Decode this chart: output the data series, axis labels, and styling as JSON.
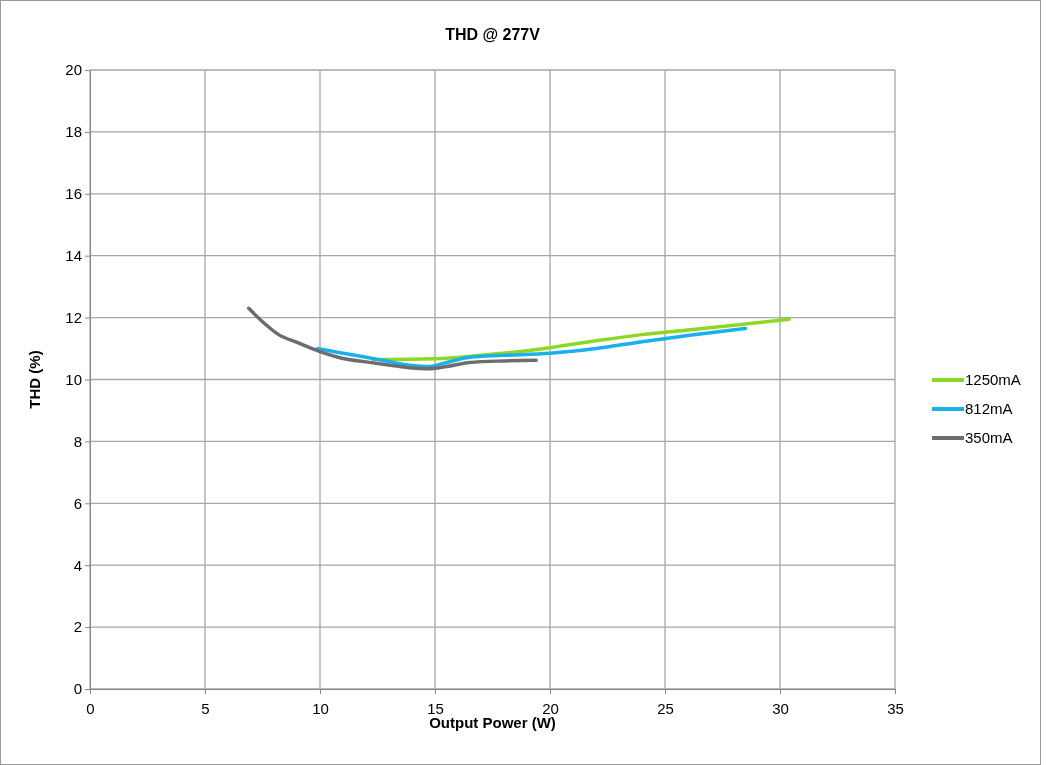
{
  "chart_data": {
    "type": "line",
    "title": "THD @ 277V",
    "xlabel": "Output Power (W)",
    "ylabel": "THD (%)",
    "xlim": [
      0,
      35
    ],
    "xticks": [
      0,
      5,
      10,
      15,
      20,
      25,
      30,
      35
    ],
    "ylim": [
      0,
      20
    ],
    "yticks": [
      0,
      2,
      4,
      6,
      8,
      10,
      12,
      14,
      16,
      18,
      20
    ],
    "grid": true,
    "legend": "right",
    "marker": "none",
    "line_style": "solid",
    "series": [
      {
        "name": "1250mA",
        "color": "#8ed824",
        "x": [
          12.3,
          13,
          15,
          17,
          19,
          20,
          22,
          24,
          26,
          28,
          30.4
        ],
        "values": [
          10.65,
          10.65,
          10.67,
          10.78,
          10.93,
          11.03,
          11.25,
          11.45,
          11.6,
          11.75,
          11.95
        ]
      },
      {
        "name": "812mA",
        "color": "#1ab0ec",
        "x": [
          9.9,
          11,
          12,
          13,
          14,
          14.7,
          15.5,
          16.5,
          18,
          20,
          22,
          24,
          26,
          28.5
        ],
        "values": [
          11.0,
          10.85,
          10.72,
          10.58,
          10.45,
          10.42,
          10.55,
          10.72,
          10.78,
          10.85,
          11.0,
          11.22,
          11.42,
          11.65
        ]
      },
      {
        "name": "350mA",
        "color": "#6d6d6d",
        "x": [
          6.9,
          7.6,
          8.2,
          9,
          10,
          11,
          12,
          13,
          14,
          14.7,
          15.5,
          16.5,
          18,
          19.4
        ],
        "values": [
          12.3,
          11.8,
          11.45,
          11.2,
          10.9,
          10.68,
          10.57,
          10.47,
          10.37,
          10.35,
          10.42,
          10.55,
          10.6,
          10.62
        ]
      }
    ]
  }
}
